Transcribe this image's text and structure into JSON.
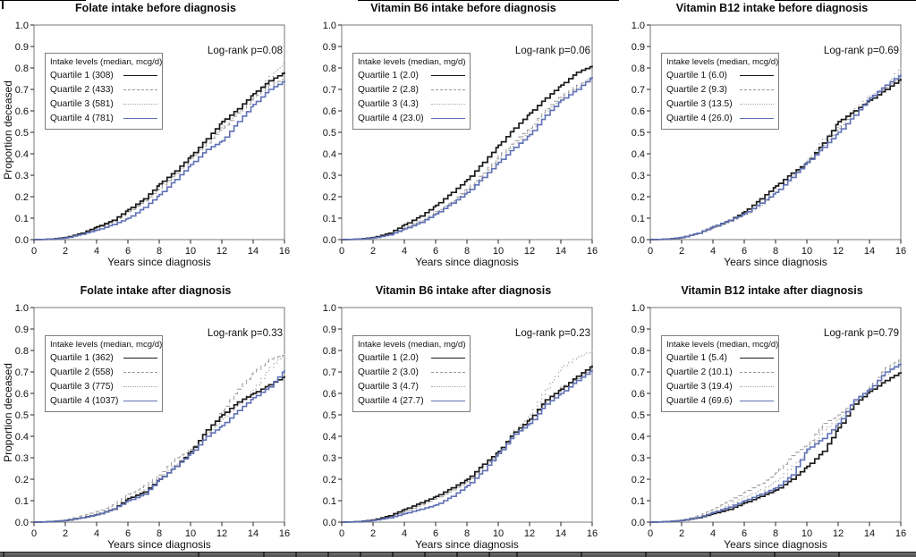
{
  "palette": {
    "q1": "#1a1a1a",
    "q2": "#999999",
    "q3": "#a9a9a9",
    "q4": "#5f70b5",
    "box": "#777777",
    "tick": "#222222",
    "text": "#111111"
  },
  "chart_data": [
    {
      "type": "line",
      "variant": "kaplan-meier-cumulative-incidence",
      "title": "Folate intake before diagnosis",
      "p_label": "Log-rank p=0.08",
      "legend_title": "Intake levels (median, mcg/d)",
      "xlabel": "Years since diagnosis",
      "ylabel": "Proportion deceased",
      "show_ylabel": true,
      "xlim": [
        0,
        16
      ],
      "ylim": [
        0,
        1
      ],
      "xticks": [
        0,
        2,
        4,
        6,
        8,
        10,
        12,
        14,
        16
      ],
      "yticks": [
        "0.0",
        "0.1",
        "0.2",
        "0.3",
        "0.4",
        "0.5",
        "0.6",
        "0.7",
        "0.8",
        "0.9",
        "1.0"
      ],
      "legend_position": "upper-left",
      "x": [
        0,
        1,
        2,
        3,
        4,
        5,
        6,
        7,
        8,
        9,
        10,
        11,
        12,
        13,
        14,
        15,
        16
      ],
      "series": [
        {
          "name": "q1",
          "label": "Quartile 1 (308)",
          "median": "308",
          "style": "solid-black",
          "values": [
            0,
            0.002,
            0.01,
            0.03,
            0.06,
            0.09,
            0.14,
            0.19,
            0.26,
            0.32,
            0.39,
            0.47,
            0.55,
            0.61,
            0.68,
            0.74,
            0.78
          ]
        },
        {
          "name": "q2",
          "label": "Quartile 2 (433)",
          "median": "433",
          "style": "dashed-gray",
          "values": [
            0,
            0.002,
            0.01,
            0.03,
            0.055,
            0.085,
            0.13,
            0.18,
            0.24,
            0.31,
            0.38,
            0.45,
            0.52,
            0.59,
            0.66,
            0.72,
            0.75
          ]
        },
        {
          "name": "q3",
          "label": "Quartile 3 (581)",
          "median": "581",
          "style": "dotted-gray",
          "values": [
            0,
            0.002,
            0.01,
            0.03,
            0.06,
            0.09,
            0.13,
            0.185,
            0.25,
            0.31,
            0.38,
            0.46,
            0.53,
            0.6,
            0.67,
            0.76,
            0.83
          ]
        },
        {
          "name": "q4",
          "label": "Quartile 4 (781)",
          "median": "781",
          "style": "solid-blue",
          "values": [
            0,
            0.002,
            0.008,
            0.025,
            0.045,
            0.07,
            0.1,
            0.15,
            0.21,
            0.28,
            0.35,
            0.42,
            0.46,
            0.55,
            0.63,
            0.7,
            0.74
          ]
        }
      ]
    },
    {
      "type": "line",
      "variant": "kaplan-meier-cumulative-incidence",
      "title": "Vitamin B6 intake before diagnosis",
      "p_label": "Log-rank p=0.06",
      "legend_title": "Intake levels (median, mg/d)",
      "xlabel": "Years since diagnosis",
      "ylabel": "Proportion deceased",
      "show_ylabel": false,
      "xlim": [
        0,
        16
      ],
      "ylim": [
        0,
        1
      ],
      "xticks": [
        0,
        2,
        4,
        6,
        8,
        10,
        12,
        14,
        16
      ],
      "yticks": [
        "0.0",
        "0.1",
        "0.2",
        "0.3",
        "0.4",
        "0.5",
        "0.6",
        "0.7",
        "0.8",
        "0.9",
        "1.0"
      ],
      "legend_position": "upper-left",
      "x": [
        0,
        1,
        2,
        3,
        4,
        5,
        6,
        7,
        8,
        9,
        10,
        11,
        12,
        13,
        14,
        15,
        16
      ],
      "series": [
        {
          "name": "q1",
          "label": "Quartile 1 (2.0)",
          "median": "2.0",
          "style": "solid-black",
          "values": [
            0,
            0.002,
            0.01,
            0.03,
            0.07,
            0.11,
            0.16,
            0.22,
            0.28,
            0.36,
            0.44,
            0.52,
            0.59,
            0.66,
            0.72,
            0.78,
            0.81
          ]
        },
        {
          "name": "q2",
          "label": "Quartile 2 (2.8)",
          "median": "2.8",
          "style": "dashed-gray",
          "values": [
            0,
            0.002,
            0.01,
            0.025,
            0.055,
            0.09,
            0.13,
            0.18,
            0.24,
            0.31,
            0.39,
            0.46,
            0.52,
            0.61,
            0.67,
            0.72,
            0.75
          ]
        },
        {
          "name": "q3",
          "label": "Quartile 3 (4.3)",
          "median": "4.3",
          "style": "dotted-gray",
          "values": [
            0,
            0.002,
            0.01,
            0.025,
            0.05,
            0.085,
            0.125,
            0.175,
            0.235,
            0.3,
            0.38,
            0.45,
            0.51,
            0.6,
            0.66,
            0.71,
            0.77
          ]
        },
        {
          "name": "q4",
          "label": "Quartile 4 (23.0)",
          "median": "23.0",
          "style": "solid-blue",
          "values": [
            0,
            0.002,
            0.008,
            0.022,
            0.05,
            0.08,
            0.12,
            0.17,
            0.22,
            0.29,
            0.36,
            0.43,
            0.49,
            0.58,
            0.65,
            0.7,
            0.76
          ]
        }
      ]
    },
    {
      "type": "line",
      "variant": "kaplan-meier-cumulative-incidence",
      "title": "Vitamin B12 intake before diagnosis",
      "p_label": "Log-rank p=0.69",
      "legend_title": "Intake levels (median, mcg/d)",
      "xlabel": "Years since diagnosis",
      "ylabel": "Proportion deceased",
      "show_ylabel": false,
      "xlim": [
        0,
        16
      ],
      "ylim": [
        0,
        1
      ],
      "xticks": [
        0,
        2,
        4,
        6,
        8,
        10,
        12,
        14,
        16
      ],
      "yticks": [
        "0.0",
        "0.1",
        "0.2",
        "0.3",
        "0.4",
        "0.5",
        "0.6",
        "0.7",
        "0.8",
        "0.9",
        "1.0"
      ],
      "legend_position": "upper-left",
      "x": [
        0,
        1,
        2,
        3,
        4,
        5,
        6,
        7,
        8,
        9,
        10,
        11,
        12,
        13,
        14,
        15,
        16
      ],
      "series": [
        {
          "name": "q1",
          "label": "Quartile 1 (6.0)",
          "median": "6.0",
          "style": "solid-black",
          "values": [
            0,
            0.002,
            0.01,
            0.03,
            0.06,
            0.09,
            0.13,
            0.19,
            0.25,
            0.31,
            0.36,
            0.45,
            0.55,
            0.6,
            0.65,
            0.7,
            0.75
          ]
        },
        {
          "name": "q2",
          "label": "Quartile 2 (9.3)",
          "median": "9.3",
          "style": "dashed-gray",
          "values": [
            0,
            0.002,
            0.01,
            0.03,
            0.055,
            0.085,
            0.12,
            0.17,
            0.22,
            0.3,
            0.36,
            0.44,
            0.52,
            0.6,
            0.66,
            0.71,
            0.76
          ]
        },
        {
          "name": "q3",
          "label": "Quartile 3 (13.5)",
          "median": "13.5",
          "style": "dotted-gray",
          "values": [
            0,
            0.002,
            0.01,
            0.03,
            0.055,
            0.085,
            0.115,
            0.16,
            0.22,
            0.3,
            0.37,
            0.47,
            0.53,
            0.61,
            0.67,
            0.72,
            0.81
          ]
        },
        {
          "name": "q4",
          "label": "Quartile 4 (26.0)",
          "median": "26.0",
          "style": "solid-blue",
          "values": [
            0,
            0.002,
            0.01,
            0.03,
            0.06,
            0.09,
            0.12,
            0.17,
            0.22,
            0.29,
            0.36,
            0.43,
            0.5,
            0.58,
            0.66,
            0.72,
            0.77
          ]
        }
      ]
    },
    {
      "type": "line",
      "variant": "kaplan-meier-cumulative-incidence",
      "title": "Folate intake after diagnosis",
      "p_label": "Log-rank p=0.33",
      "legend_title": "Intake levels (median, mcg/d)",
      "xlabel": "Years since diagnosis",
      "ylabel": "Proportion deceased",
      "show_ylabel": true,
      "xlim": [
        0,
        16
      ],
      "ylim": [
        0,
        1
      ],
      "xticks": [
        0,
        2,
        4,
        6,
        8,
        10,
        12,
        14,
        16
      ],
      "yticks": [
        "0.0",
        "0.1",
        "0.2",
        "0.3",
        "0.4",
        "0.5",
        "0.6",
        "0.7",
        "0.8",
        "0.9",
        "1.0"
      ],
      "legend_position": "upper-left",
      "x": [
        0,
        1,
        2,
        3,
        4,
        5,
        6,
        7,
        8,
        9,
        10,
        11,
        12,
        13,
        14,
        15,
        16
      ],
      "series": [
        {
          "name": "q1",
          "label": "Quartile 1 (362)",
          "median": "362",
          "style": "solid-black",
          "values": [
            0,
            0.002,
            0.008,
            0.02,
            0.035,
            0.06,
            0.11,
            0.14,
            0.2,
            0.26,
            0.33,
            0.43,
            0.5,
            0.56,
            0.6,
            0.64,
            0.68
          ]
        },
        {
          "name": "q2",
          "label": "Quartile 2 (558)",
          "median": "558",
          "style": "dashed-gray",
          "values": [
            0,
            0.002,
            0.01,
            0.03,
            0.05,
            0.08,
            0.13,
            0.17,
            0.22,
            0.3,
            0.34,
            0.42,
            0.52,
            0.62,
            0.7,
            0.76,
            0.78
          ]
        },
        {
          "name": "q3",
          "label": "Quartile 3 (775)",
          "median": "775",
          "style": "dotted-gray",
          "values": [
            0,
            0.002,
            0.008,
            0.022,
            0.04,
            0.065,
            0.11,
            0.15,
            0.21,
            0.27,
            0.33,
            0.41,
            0.48,
            0.55,
            0.62,
            0.72,
            0.79
          ]
        },
        {
          "name": "q4",
          "label": "Quartile 4 (1037)",
          "median": "1037",
          "style": "solid-blue",
          "values": [
            0,
            0.002,
            0.008,
            0.02,
            0.035,
            0.06,
            0.1,
            0.13,
            0.2,
            0.26,
            0.32,
            0.4,
            0.45,
            0.52,
            0.58,
            0.63,
            0.71
          ]
        }
      ]
    },
    {
      "type": "line",
      "variant": "kaplan-meier-cumulative-incidence",
      "title": "Vitamin B6 intake after diagnosis",
      "p_label": "Log-rank p=0.23",
      "legend_title": "Intake levels (median, mg/d)",
      "xlabel": "Years since diagnosis",
      "ylabel": "Proportion deceased",
      "show_ylabel": false,
      "xlim": [
        0,
        16
      ],
      "ylim": [
        0,
        1
      ],
      "xticks": [
        0,
        2,
        4,
        6,
        8,
        10,
        12,
        14,
        16
      ],
      "yticks": [
        "0.0",
        "0.1",
        "0.2",
        "0.3",
        "0.4",
        "0.5",
        "0.6",
        "0.7",
        "0.8",
        "0.9",
        "1.0"
      ],
      "legend_position": "upper-left",
      "x": [
        0,
        1,
        2,
        3,
        4,
        5,
        6,
        7,
        8,
        9,
        10,
        11,
        12,
        13,
        14,
        15,
        16
      ],
      "series": [
        {
          "name": "q1",
          "label": "Quartile 1 (2.0)",
          "median": "2.0",
          "style": "solid-black",
          "values": [
            0,
            0.002,
            0.01,
            0.03,
            0.06,
            0.09,
            0.12,
            0.16,
            0.2,
            0.27,
            0.33,
            0.42,
            0.48,
            0.57,
            0.62,
            0.68,
            0.73
          ]
        },
        {
          "name": "q2",
          "label": "Quartile 2 (3.0)",
          "median": "3.0",
          "style": "dashed-gray",
          "values": [
            0,
            0.002,
            0.01,
            0.025,
            0.05,
            0.08,
            0.11,
            0.15,
            0.19,
            0.26,
            0.32,
            0.41,
            0.48,
            0.56,
            0.63,
            0.67,
            0.72
          ]
        },
        {
          "name": "q3",
          "label": "Quartile 3 (4.7)",
          "median": "4.7",
          "style": "dotted-gray",
          "values": [
            0,
            0.002,
            0.01,
            0.025,
            0.05,
            0.08,
            0.11,
            0.15,
            0.19,
            0.26,
            0.33,
            0.43,
            0.5,
            0.62,
            0.72,
            0.77,
            0.8
          ]
        },
        {
          "name": "q4",
          "label": "Quartile 4 (27.7)",
          "median": "27.7",
          "style": "solid-blue",
          "values": [
            0,
            0.002,
            0.008,
            0.02,
            0.04,
            0.06,
            0.08,
            0.12,
            0.17,
            0.24,
            0.32,
            0.41,
            0.46,
            0.55,
            0.6,
            0.66,
            0.71
          ]
        }
      ]
    },
    {
      "type": "line",
      "variant": "kaplan-meier-cumulative-incidence",
      "title": "Vitamin B12 intake after diagnosis",
      "p_label": "Log-rank p=0.79",
      "legend_title": "Intake levels (median, mcg/d)",
      "xlabel": "Years since diagnosis",
      "ylabel": "Proportion deceased",
      "show_ylabel": false,
      "xlim": [
        0,
        16
      ],
      "ylim": [
        0,
        1
      ],
      "xticks": [
        0,
        2,
        4,
        6,
        8,
        10,
        12,
        14,
        16
      ],
      "yticks": [
        "0.0",
        "0.1",
        "0.2",
        "0.3",
        "0.4",
        "0.5",
        "0.6",
        "0.7",
        "0.8",
        "0.9",
        "1.0"
      ],
      "legend_position": "upper-left",
      "x": [
        0,
        1,
        2,
        3,
        4,
        5,
        6,
        7,
        8,
        9,
        10,
        11,
        12,
        13,
        14,
        15,
        16
      ],
      "series": [
        {
          "name": "q1",
          "label": "Quartile 1 (5.4)",
          "median": "5.4",
          "style": "solid-black",
          "values": [
            0,
            0.002,
            0.008,
            0.02,
            0.04,
            0.06,
            0.09,
            0.12,
            0.15,
            0.2,
            0.26,
            0.33,
            0.44,
            0.55,
            0.61,
            0.66,
            0.7
          ]
        },
        {
          "name": "q2",
          "label": "Quartile 2 (10.1)",
          "median": "10.1",
          "style": "dashed-gray",
          "values": [
            0,
            0.002,
            0.01,
            0.03,
            0.06,
            0.1,
            0.14,
            0.18,
            0.23,
            0.31,
            0.36,
            0.46,
            0.5,
            0.56,
            0.63,
            0.72,
            0.76
          ]
        },
        {
          "name": "q3",
          "label": "Quartile 3 (19.4)",
          "median": "19.4",
          "style": "dotted-gray",
          "values": [
            0,
            0.002,
            0.01,
            0.025,
            0.05,
            0.08,
            0.12,
            0.15,
            0.19,
            0.26,
            0.33,
            0.43,
            0.48,
            0.56,
            0.62,
            0.69,
            0.755
          ]
        },
        {
          "name": "q4",
          "label": "Quartile 4 (69.6)",
          "median": "69.6",
          "style": "solid-blue",
          "values": [
            0,
            0.002,
            0.008,
            0.022,
            0.045,
            0.07,
            0.1,
            0.13,
            0.16,
            0.22,
            0.34,
            0.39,
            0.46,
            0.57,
            0.62,
            0.7,
            0.74
          ]
        }
      ]
    }
  ]
}
